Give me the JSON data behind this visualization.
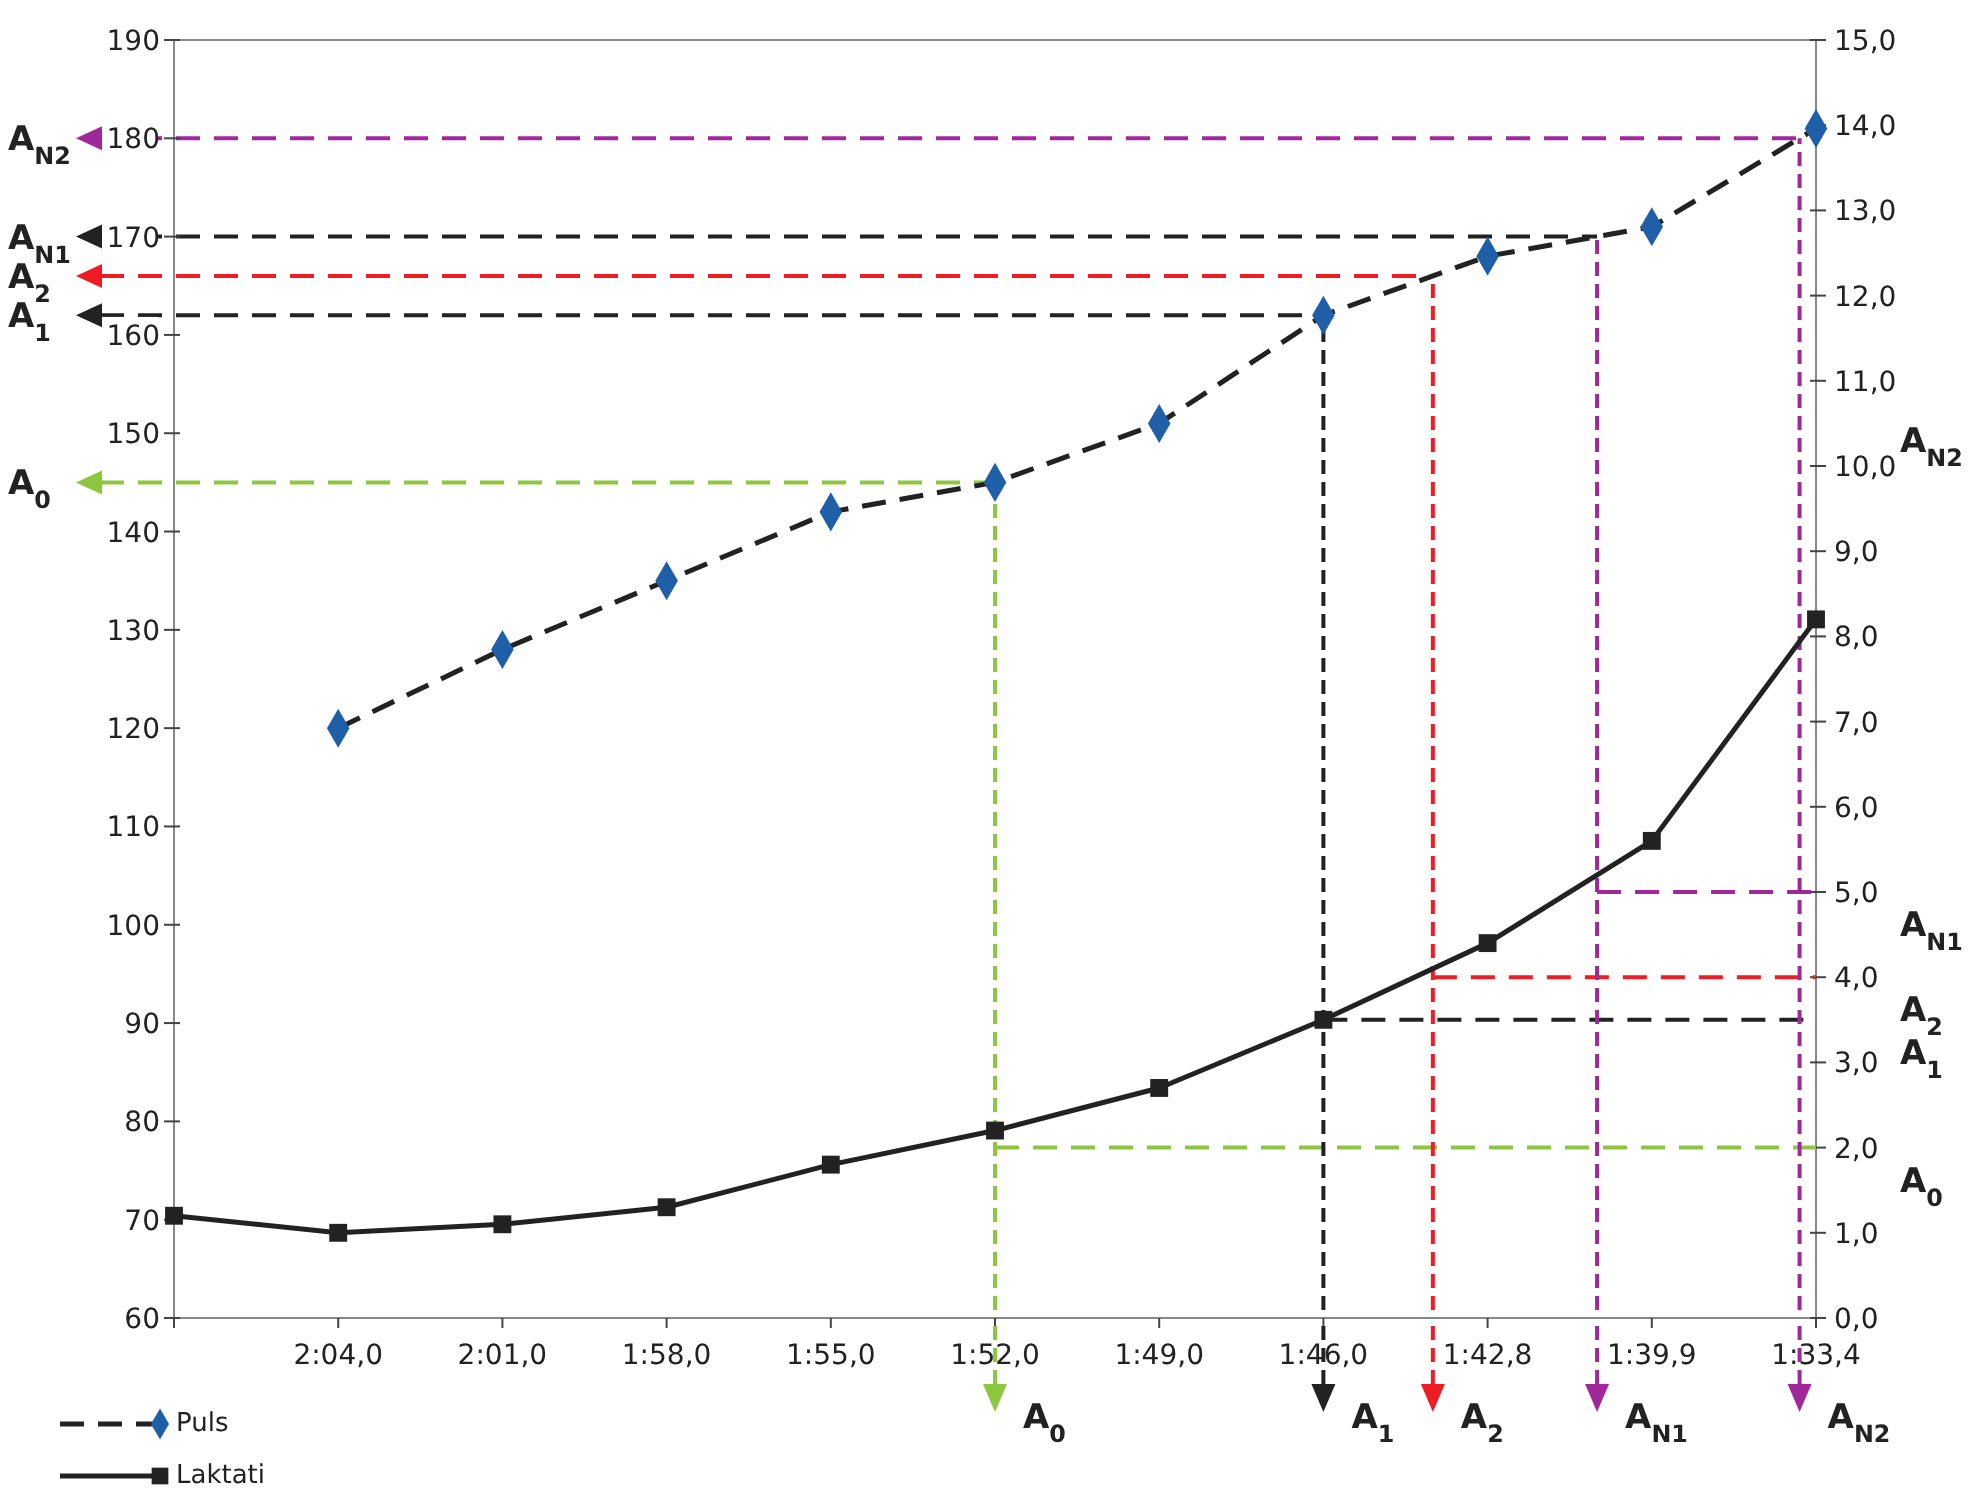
{
  "chart_data": {
    "type": "line",
    "categories": [
      null,
      "2:04,0",
      "2:01,0",
      "1:58,0",
      "1:55,0",
      "1:52,0",
      "1:49,0",
      "1:46,0",
      "1:42,8",
      "1:39,9",
      "1:33,4"
    ],
    "series": [
      {
        "name": "Puls",
        "color": "#1f5fa8",
        "marker": "diamond",
        "line_style": "dashed",
        "values": [
          null,
          120,
          128,
          135,
          142,
          145,
          151,
          162,
          168,
          171,
          181
        ]
      },
      {
        "name": "Laktati",
        "color": "#222222",
        "marker": "square",
        "line_style": "solid",
        "axis": "y2",
        "values": [
          1.2,
          1.0,
          1.1,
          1.3,
          1.8,
          2.2,
          2.7,
          3.5,
          4.4,
          5.6,
          8.2
        ]
      }
    ],
    "ylim": [
      60,
      190
    ],
    "yticks": [
      60,
      70,
      80,
      90,
      100,
      110,
      120,
      130,
      140,
      150,
      160,
      170,
      180,
      190
    ],
    "y2lim": [
      0,
      15
    ],
    "y2ticks": [
      {
        "value": 0,
        "label": "0,0"
      },
      {
        "value": 1,
        "label": "1,0"
      },
      {
        "value": 2,
        "label": "2,0"
      },
      {
        "value": 3,
        "label": "3,0"
      },
      {
        "value": 4,
        "label": "4,0"
      },
      {
        "value": 5,
        "label": "5,0"
      },
      {
        "value": 6,
        "label": "6,0"
      },
      {
        "value": 7,
        "label": "7,0"
      },
      {
        "value": 8,
        "label": "8,0"
      },
      {
        "value": 9,
        "label": "9,0"
      },
      {
        "value": 10,
        "label": "10,0"
      },
      {
        "value": 11,
        "label": "11,0"
      },
      {
        "value": 12,
        "label": "12,0"
      },
      {
        "value": 13,
        "label": "13,0"
      },
      {
        "value": 14,
        "label": "14,0"
      },
      {
        "value": 15,
        "label": "15,0"
      }
    ],
    "ref_lines": [
      {
        "axis": "y",
        "value": 145,
        "label": "A$_{0}$",
        "color": "#8dc63f",
        "line_style": "dashed"
      },
      {
        "axis": "y2",
        "value": 2.0,
        "label": "A$_{0}$",
        "color": "#8dc63f",
        "line_style": "dashed"
      },
      {
        "axis": "y",
        "value": 162,
        "label": "A$_{1}$",
        "color": "#222222",
        "line_style": "dashed"
      },
      {
        "axis": "y2",
        "value": 3.5,
        "label": "A$_{1}$",
        "color": "#222222",
        "line_style": "dashed"
      },
      {
        "axis": "y",
        "value": 166,
        "label": "A$_{2}$",
        "color": "#ee1c25",
        "line_style": "dashed"
      },
      {
        "axis": "y2",
        "value": 4.0,
        "label": "A$_{2}$",
        "color": "#ee1c25",
        "line_style": "dashed"
      },
      {
        "axis": "y",
        "value": 170,
        "label": "A$_{N1}$",
        "color": "#222222",
        "line_style": "dashed"
      },
      {
        "axis": "y2",
        "value": 5.0,
        "label": "A$_{N1}$",
        "color": "#a0289b",
        "line_style": "dashed"
      },
      {
        "axis": "y",
        "value": 180,
        "label": "A$_{N2}$",
        "color": "#a0289b",
        "line_style": "dashed"
      }
    ],
    "annotations": [
      "A$_{N2}$"
    ],
    "legend": "bottom left"
  }
}
